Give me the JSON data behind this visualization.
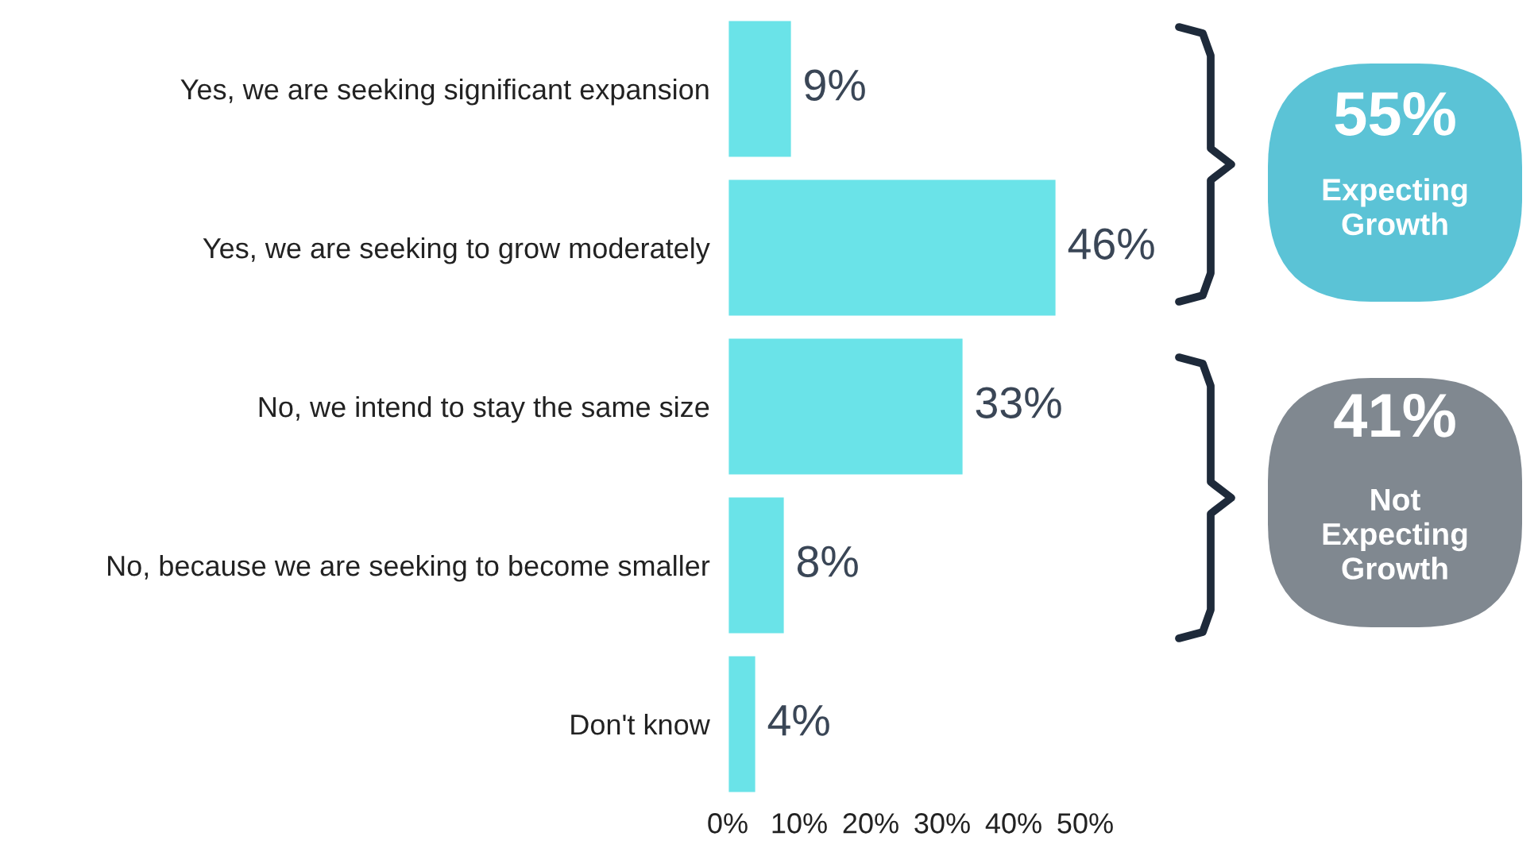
{
  "chart_data": {
    "type": "bar",
    "orientation": "horizontal",
    "categories": [
      "Yes, we are seeking significant expansion",
      "Yes, we are seeking to grow moderately",
      "No, we intend to stay the same size",
      "No, because we are seeking to become smaller",
      "Don't know"
    ],
    "values": [
      9,
      46,
      33,
      8,
      4
    ],
    "value_labels": [
      "9%",
      "46%",
      "33%",
      "8%",
      "4%"
    ],
    "color": "#6ae3e8",
    "xlim": [
      0,
      50
    ],
    "xticks": [
      {
        "value": 0,
        "label": "0%"
      },
      {
        "value": 10,
        "label": "10%"
      },
      {
        "value": 20,
        "label": "20%"
      },
      {
        "value": 30,
        "label": "30%"
      },
      {
        "value": 40,
        "label": "40%"
      },
      {
        "value": 50,
        "label": "50%"
      }
    ],
    "grid": false,
    "legend": false,
    "annotations": [
      "55%",
      "Expecting\nGrowth",
      "41%",
      "Not\nExpecting\nGrowth"
    ]
  }
}
